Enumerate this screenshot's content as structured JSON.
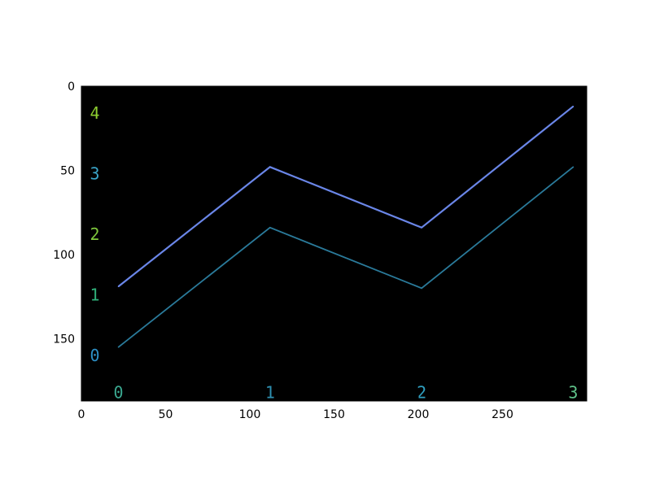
{
  "chart_data": {
    "type": "line",
    "title": "",
    "xlabel": "",
    "ylabel": "",
    "xlim": [
      0,
      300
    ],
    "ylim": [
      187,
      0
    ],
    "y_inverted": true,
    "grid": false,
    "legend": "none",
    "background": "#000000",
    "x_ticks": [
      0,
      50,
      100,
      150,
      200,
      250
    ],
    "y_ticks": [
      0,
      50,
      100,
      150
    ],
    "series": [
      {
        "color": "#6a86e8",
        "x": [
          22,
          112,
          202,
          292
        ],
        "y": [
          119,
          48,
          84,
          12
        ]
      },
      {
        "color": "#2a7a9a",
        "x": [
          22,
          112,
          202,
          292
        ],
        "y": [
          155,
          84,
          120,
          48
        ]
      }
    ],
    "annotations": [
      {
        "text": "0",
        "x": 22,
        "y": 182,
        "color": "#3aa890"
      },
      {
        "text": "1",
        "x": 112,
        "y": 182,
        "color": "#2e8fb0"
      },
      {
        "text": "2",
        "x": 202,
        "y": 182,
        "color": "#2f9fc0"
      },
      {
        "text": "3",
        "x": 292,
        "y": 182,
        "color": "#5fc38a"
      },
      {
        "text": "0",
        "x": 8,
        "y": 160,
        "color": "#2d8fc5"
      },
      {
        "text": "1",
        "x": 8,
        "y": 124,
        "color": "#30b07a"
      },
      {
        "text": "2",
        "x": 8,
        "y": 88,
        "color": "#7fc83c"
      },
      {
        "text": "3",
        "x": 8,
        "y": 52,
        "color": "#3aa4c8"
      },
      {
        "text": "4",
        "x": 8,
        "y": 16,
        "color": "#8dce30"
      }
    ]
  }
}
